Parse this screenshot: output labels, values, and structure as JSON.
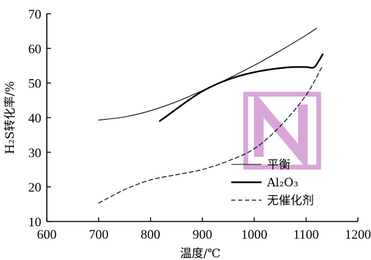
{
  "chart_data": {
    "type": "line",
    "xlabel": "温度/℃",
    "ylabel": "H₂S转化率/%",
    "xlim": [
      600,
      1200
    ],
    "ylim": [
      10,
      70
    ],
    "xticks": [
      600,
      700,
      800,
      900,
      1000,
      1100,
      1200
    ],
    "yticks": [
      10,
      20,
      30,
      40,
      50,
      60,
      70
    ],
    "xtick_labels": [
      "600",
      "700",
      "800",
      "900",
      "1000",
      "1100",
      "1200"
    ],
    "ytick_labels": [
      "10",
      "20",
      "30",
      "40",
      "50",
      "60",
      "70"
    ],
    "grid": false,
    "legend_position": "bottom-right",
    "series": [
      {
        "name": "平衡",
        "style": "thin-solid",
        "color": "#000000",
        "x": [
          700,
          750,
          800,
          850,
          900,
          950,
          1000,
          1050,
          1100,
          1120
        ],
        "y": [
          39.3,
          40.2,
          42.0,
          44.6,
          47.8,
          51.3,
          55.1,
          59.3,
          63.8,
          65.8
        ]
      },
      {
        "name": "Al₂O₃",
        "style": "thick-solid",
        "color": "#000000",
        "x": [
          818,
          850,
          875,
          900,
          925,
          950,
          975,
          1000,
          1025,
          1050,
          1075,
          1100,
          1115,
          1125,
          1132
        ],
        "y": [
          39.0,
          42.5,
          45.2,
          47.6,
          49.5,
          51.0,
          52.2,
          53.1,
          53.8,
          54.3,
          54.6,
          54.6,
          54.5,
          56.5,
          58.3
        ]
      },
      {
        "name": "无催化剂",
        "style": "dashed",
        "color": "#000000",
        "x": [
          700,
          750,
          800,
          850,
          900,
          950,
          1000,
          1050,
          1100,
          1130
        ],
        "y": [
          15.3,
          19.2,
          22.0,
          23.5,
          25.0,
          27.5,
          31.0,
          37.5,
          46.5,
          54.5
        ]
      }
    ]
  }
}
